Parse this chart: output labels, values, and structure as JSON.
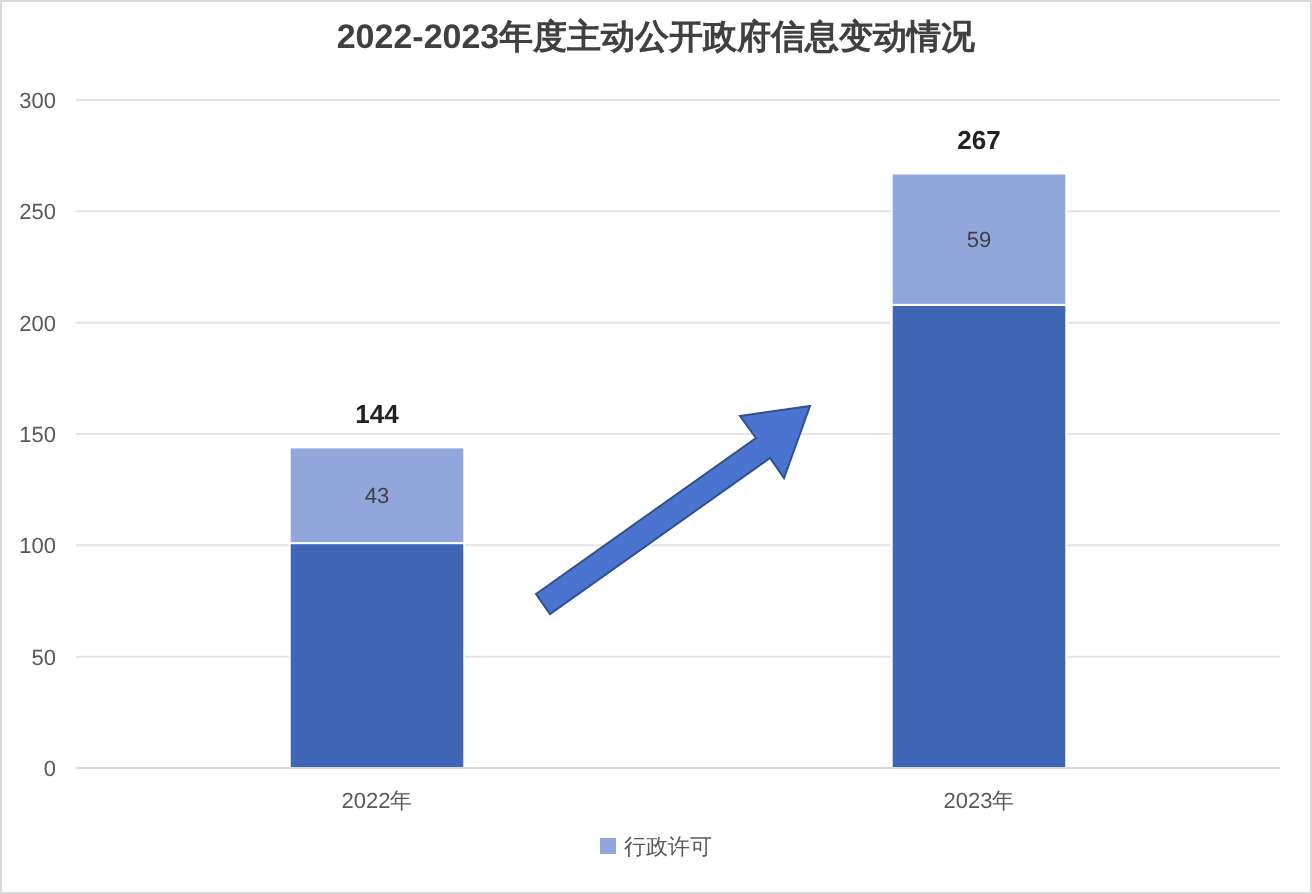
{
  "chart_data": {
    "type": "bar",
    "title": "2022-2023年度主动公开政府信息变动情况",
    "categories": [
      "2022年",
      "2023年"
    ],
    "stacked": true,
    "series": [
      {
        "color": "#3f66b5",
        "values": [
          101,
          208
        ]
      },
      {
        "name": "行政许可",
        "color": "#91a7dc",
        "values": [
          43,
          59
        ],
        "value_labels": [
          "43",
          "59"
        ]
      }
    ],
    "totals": [
      "144",
      "267"
    ],
    "ylim": [
      0,
      300
    ],
    "yticks": [
      0,
      50,
      100,
      150,
      200,
      250,
      300
    ],
    "grid": "y",
    "legend": "bottom"
  }
}
